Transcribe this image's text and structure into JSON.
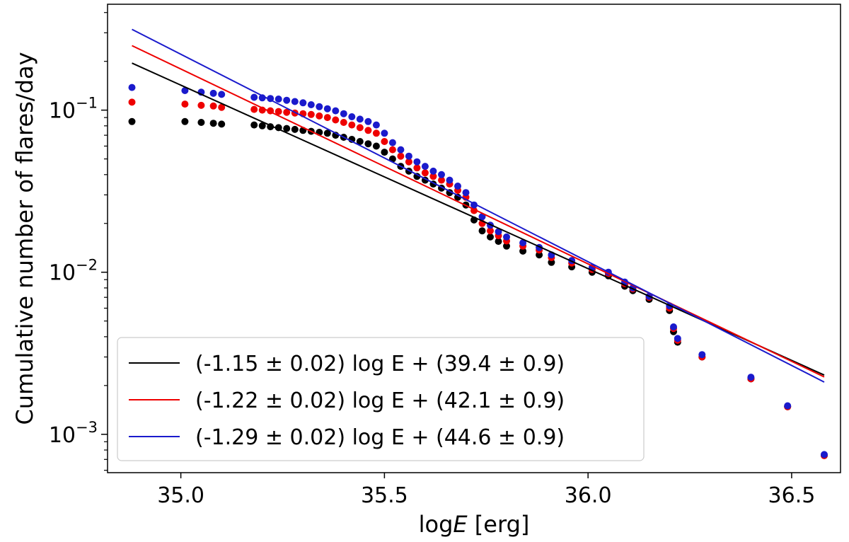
{
  "chart_data": {
    "type": "scatter",
    "xlabel_prefix": "log",
    "xlabel_var": "E",
    "xlabel_unit": " [erg]",
    "ylabel": "Cumulative number of flares/day",
    "xlim": [
      34.82,
      36.62
    ],
    "ylim": [
      0.00058,
      0.45
    ],
    "yscale": "log",
    "grid": false,
    "legend_position": "lower-left",
    "x_ticks": [
      {
        "value": 35.0,
        "label": "35.0"
      },
      {
        "value": 35.5,
        "label": "35.5"
      },
      {
        "value": 36.0,
        "label": "36.0"
      },
      {
        "value": 36.5,
        "label": "36.5"
      }
    ],
    "y_ticks": [
      {
        "value": 0.001,
        "base": "10",
        "exp": "−3"
      },
      {
        "value": 0.01,
        "base": "10",
        "exp": "−2"
      },
      {
        "value": 0.1,
        "base": "10",
        "exp": "−1"
      }
    ],
    "fit_x_range": [
      34.88,
      36.58
    ],
    "series": [
      {
        "color": "#000000",
        "fit_label": "(-1.15 ± 0.02) log E + (39.4 ± 0.9)",
        "fit_y_endpoints": [
          0.195,
          0.00232
        ],
        "points": [
          [
            34.88,
            0.085
          ],
          [
            35.01,
            0.085
          ],
          [
            35.05,
            0.084
          ],
          [
            35.08,
            0.083
          ],
          [
            35.1,
            0.082
          ],
          [
            35.18,
            0.081
          ],
          [
            35.2,
            0.08
          ],
          [
            35.22,
            0.079
          ],
          [
            35.24,
            0.078
          ],
          [
            35.26,
            0.077
          ],
          [
            35.28,
            0.076
          ],
          [
            35.3,
            0.075
          ],
          [
            35.32,
            0.074
          ],
          [
            35.34,
            0.073
          ],
          [
            35.36,
            0.072
          ],
          [
            35.38,
            0.07
          ],
          [
            35.4,
            0.068
          ],
          [
            35.42,
            0.066
          ],
          [
            35.44,
            0.064
          ],
          [
            35.46,
            0.062
          ],
          [
            35.48,
            0.06
          ],
          [
            35.5,
            0.055
          ],
          [
            35.52,
            0.05
          ],
          [
            35.54,
            0.045
          ],
          [
            35.56,
            0.042
          ],
          [
            35.58,
            0.039
          ],
          [
            35.6,
            0.037
          ],
          [
            35.62,
            0.035
          ],
          [
            35.64,
            0.033
          ],
          [
            35.66,
            0.031
          ],
          [
            35.68,
            0.029
          ],
          [
            35.7,
            0.026
          ],
          [
            35.72,
            0.021
          ],
          [
            35.74,
            0.018
          ],
          [
            35.76,
            0.0165
          ],
          [
            35.78,
            0.0155
          ],
          [
            35.8,
            0.0145
          ],
          [
            35.84,
            0.0135
          ],
          [
            35.88,
            0.0128
          ],
          [
            35.91,
            0.0115
          ],
          [
            35.96,
            0.0108
          ],
          [
            36.01,
            0.01
          ],
          [
            36.05,
            0.0095
          ],
          [
            36.09,
            0.0082
          ],
          [
            36.11,
            0.0077
          ],
          [
            36.15,
            0.0068
          ],
          [
            36.2,
            0.0058
          ],
          [
            36.21,
            0.0043
          ],
          [
            36.22,
            0.0037
          ],
          [
            36.28,
            0.003
          ],
          [
            36.4,
            0.0022
          ],
          [
            36.49,
            0.00148
          ],
          [
            36.58,
            0.00074
          ]
        ]
      },
      {
        "color": "#ee0000",
        "fit_label": "(-1.22 ± 0.02) log E + (42.1 ± 0.9)",
        "fit_y_endpoints": [
          0.25,
          0.00226
        ],
        "points": [
          [
            34.88,
            0.112
          ],
          [
            35.01,
            0.109
          ],
          [
            35.05,
            0.107
          ],
          [
            35.08,
            0.106
          ],
          [
            35.1,
            0.104
          ],
          [
            35.18,
            0.101
          ],
          [
            35.2,
            0.1
          ],
          [
            35.22,
            0.099
          ],
          [
            35.24,
            0.098
          ],
          [
            35.26,
            0.097
          ],
          [
            35.28,
            0.096
          ],
          [
            35.3,
            0.095
          ],
          [
            35.32,
            0.094
          ],
          [
            35.34,
            0.092
          ],
          [
            35.36,
            0.09
          ],
          [
            35.38,
            0.087
          ],
          [
            35.4,
            0.084
          ],
          [
            35.42,
            0.081
          ],
          [
            35.44,
            0.078
          ],
          [
            35.46,
            0.075
          ],
          [
            35.48,
            0.072
          ],
          [
            35.5,
            0.064
          ],
          [
            35.52,
            0.057
          ],
          [
            35.54,
            0.052
          ],
          [
            35.56,
            0.048
          ],
          [
            35.58,
            0.044
          ],
          [
            35.6,
            0.041
          ],
          [
            35.62,
            0.039
          ],
          [
            35.64,
            0.037
          ],
          [
            35.66,
            0.035
          ],
          [
            35.68,
            0.032
          ],
          [
            35.7,
            0.029
          ],
          [
            35.72,
            0.024
          ],
          [
            35.74,
            0.02
          ],
          [
            35.76,
            0.018
          ],
          [
            35.78,
            0.0168
          ],
          [
            35.8,
            0.0156
          ],
          [
            35.84,
            0.0145
          ],
          [
            35.88,
            0.0137
          ],
          [
            35.91,
            0.0123
          ],
          [
            35.96,
            0.0114
          ],
          [
            36.01,
            0.0104
          ],
          [
            36.05,
            0.0098
          ],
          [
            36.09,
            0.0085
          ],
          [
            36.11,
            0.0079
          ],
          [
            36.15,
            0.007
          ],
          [
            36.2,
            0.006
          ],
          [
            36.21,
            0.0045
          ],
          [
            36.22,
            0.0038
          ],
          [
            36.28,
            0.003
          ],
          [
            36.4,
            0.0022
          ],
          [
            36.49,
            0.00148
          ],
          [
            36.58,
            0.00074
          ]
        ]
      },
      {
        "color": "#1a1acc",
        "fit_label": "(-1.29 ± 0.02) log E + (44.6 ± 0.9)",
        "fit_y_endpoints": [
          0.315,
          0.0021
        ],
        "points": [
          [
            34.88,
            0.138
          ],
          [
            35.01,
            0.132
          ],
          [
            35.05,
            0.129
          ],
          [
            35.08,
            0.127
          ],
          [
            35.1,
            0.125
          ],
          [
            35.18,
            0.12
          ],
          [
            35.2,
            0.119
          ],
          [
            35.22,
            0.118
          ],
          [
            35.24,
            0.117
          ],
          [
            35.26,
            0.115
          ],
          [
            35.28,
            0.113
          ],
          [
            35.3,
            0.111
          ],
          [
            35.32,
            0.108
          ],
          [
            35.34,
            0.105
          ],
          [
            35.36,
            0.102
          ],
          [
            35.38,
            0.099
          ],
          [
            35.4,
            0.095
          ],
          [
            35.42,
            0.091
          ],
          [
            35.44,
            0.088
          ],
          [
            35.46,
            0.085
          ],
          [
            35.48,
            0.081
          ],
          [
            35.5,
            0.072
          ],
          [
            35.52,
            0.063
          ],
          [
            35.54,
            0.057
          ],
          [
            35.56,
            0.052
          ],
          [
            35.58,
            0.048
          ],
          [
            35.6,
            0.045
          ],
          [
            35.62,
            0.042
          ],
          [
            35.64,
            0.04
          ],
          [
            35.66,
            0.037
          ],
          [
            35.68,
            0.034
          ],
          [
            35.7,
            0.031
          ],
          [
            35.72,
            0.026
          ],
          [
            35.74,
            0.022
          ],
          [
            35.76,
            0.0195
          ],
          [
            35.78,
            0.0178
          ],
          [
            35.8,
            0.0165
          ],
          [
            35.84,
            0.0152
          ],
          [
            35.88,
            0.0142
          ],
          [
            35.91,
            0.0128
          ],
          [
            35.96,
            0.0118
          ],
          [
            36.01,
            0.0107
          ],
          [
            36.05,
            0.01
          ],
          [
            36.09,
            0.0087
          ],
          [
            36.11,
            0.008
          ],
          [
            36.15,
            0.0071
          ],
          [
            36.2,
            0.0062
          ],
          [
            36.21,
            0.0046
          ],
          [
            36.22,
            0.0039
          ],
          [
            36.28,
            0.0031
          ],
          [
            36.4,
            0.00225
          ],
          [
            36.49,
            0.0015
          ],
          [
            36.58,
            0.00075
          ]
        ]
      }
    ]
  }
}
